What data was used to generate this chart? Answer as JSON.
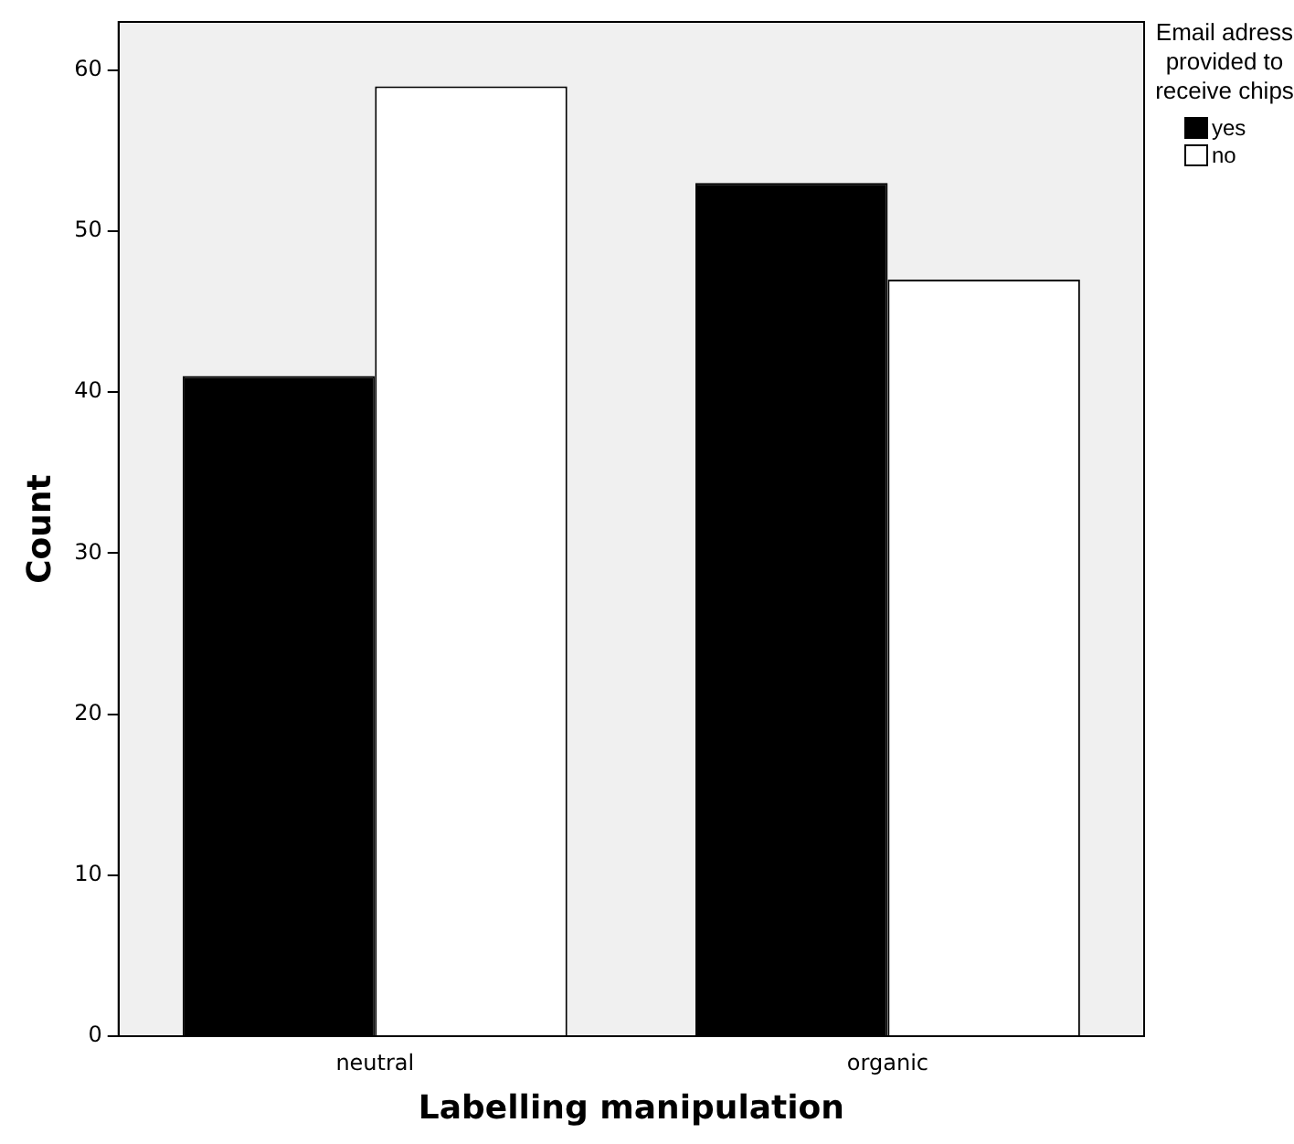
{
  "chart_data": {
    "type": "bar",
    "xlabel": "Labelling manipulation",
    "ylabel": "Count",
    "legend_title": "Email adress provided to receive chips",
    "legend": "top right",
    "grid": false,
    "categories": [
      "neutral",
      "organic"
    ],
    "series": [
      {
        "name": "yes",
        "color": "#000000",
        "values": [
          41,
          53
        ]
      },
      {
        "name": "no",
        "color": "#ffffff",
        "values": [
          59,
          47
        ]
      }
    ],
    "ylim": [
      0,
      63
    ],
    "yticks": [
      0,
      10,
      20,
      30,
      40,
      50,
      60
    ]
  }
}
